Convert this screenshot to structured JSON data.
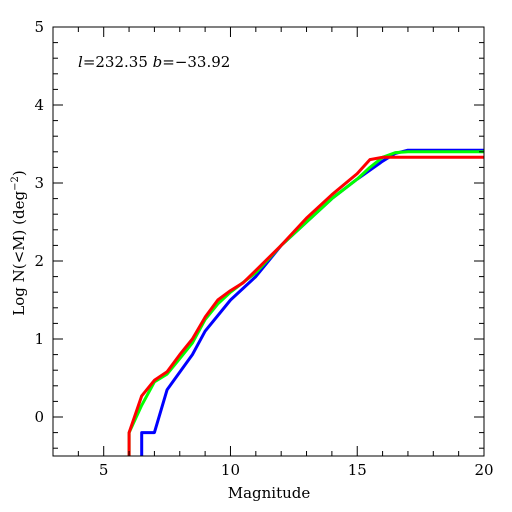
{
  "chart_data": {
    "type": "line",
    "xlabel": "Magnitude",
    "ylabel": "Log N(<M) (deg",
    "ylabel_sup": "−2",
    "ylabel_close": ")",
    "annotation": {
      "l_sym": "l",
      "l_val": "=232.35 ",
      "b_sym": "b",
      "b_val": "=−33.92"
    },
    "xlim": [
      3,
      20
    ],
    "ylim": [
      -0.5,
      5
    ],
    "xticks": [
      5,
      10,
      15,
      20
    ],
    "xtick_labels": [
      "5",
      "10",
      "15",
      "20"
    ],
    "yticks": [
      0,
      1,
      2,
      3,
      4,
      5
    ],
    "ytick_labels": [
      "0",
      "1",
      "2",
      "3",
      "4",
      "5"
    ],
    "grid": false,
    "series": [
      {
        "color": "#0000ff",
        "x": [
          6.5,
          6.5,
          7.0,
          7.5,
          8.5,
          9.0,
          10.0,
          11.0,
          12.0,
          13.0,
          14.0,
          15.0,
          16.0,
          16.5,
          17.0,
          20.0
        ],
        "y": [
          -0.5,
          -0.2,
          -0.2,
          0.35,
          0.8,
          1.1,
          1.5,
          1.8,
          2.2,
          2.5,
          2.8,
          3.05,
          3.28,
          3.38,
          3.42,
          3.42
        ]
      },
      {
        "color": "#00ff00",
        "x": [
          6.0,
          6.0,
          6.5,
          7.0,
          7.5,
          8.0,
          8.5,
          9.0,
          9.5,
          10.0,
          11.0,
          12.0,
          13.0,
          14.0,
          15.0,
          15.5,
          16.0,
          16.5,
          17.0,
          20.0
        ],
        "y": [
          -0.5,
          -0.2,
          0.15,
          0.45,
          0.55,
          0.75,
          0.95,
          1.25,
          1.45,
          1.6,
          1.85,
          2.2,
          2.5,
          2.8,
          3.05,
          3.2,
          3.33,
          3.39,
          3.4,
          3.4
        ]
      },
      {
        "color": "#ff0000",
        "x": [
          6.0,
          6.0,
          6.5,
          7.0,
          7.5,
          8.0,
          8.5,
          9.0,
          9.5,
          10.0,
          10.5,
          11.0,
          12.0,
          13.0,
          14.0,
          15.0,
          15.5,
          16.0,
          17.0,
          20.0
        ],
        "y": [
          -0.5,
          -0.2,
          0.27,
          0.47,
          0.58,
          0.8,
          1.0,
          1.28,
          1.5,
          1.62,
          1.72,
          1.88,
          2.2,
          2.55,
          2.85,
          3.12,
          3.3,
          3.33,
          3.33,
          3.33
        ]
      }
    ]
  }
}
